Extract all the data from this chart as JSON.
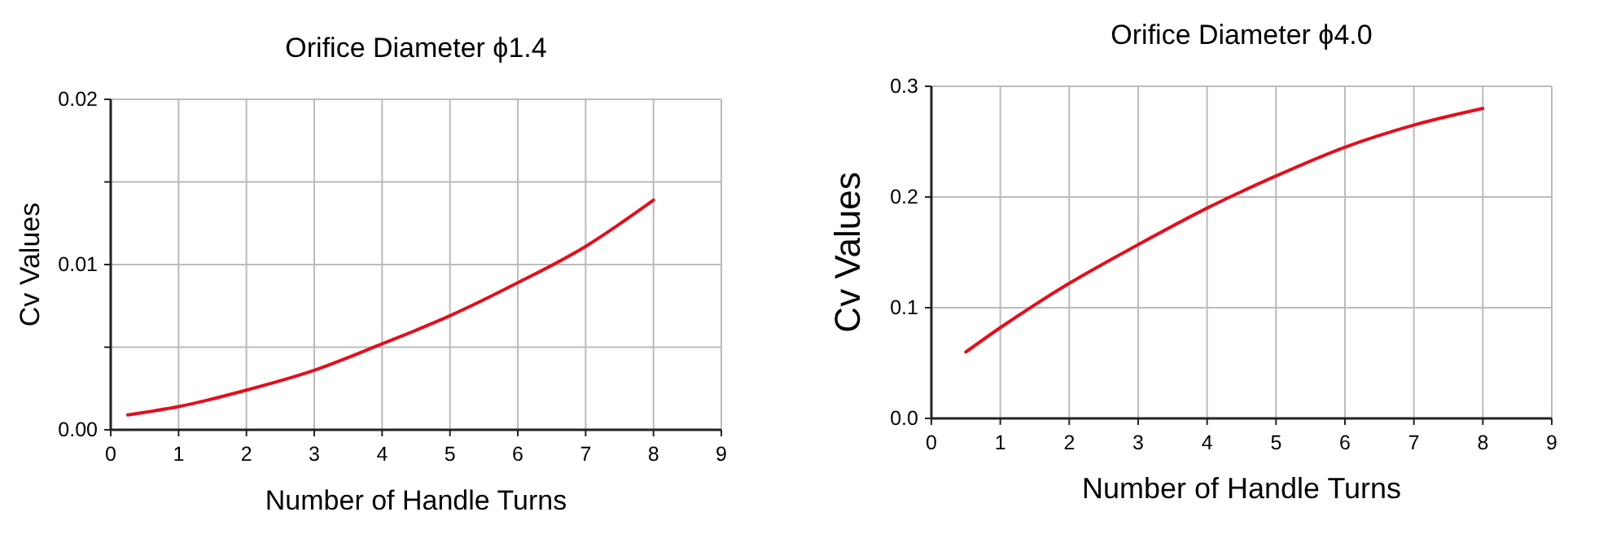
{
  "chart_data": [
    {
      "type": "line",
      "title": "Orifice Diameter ϕ1.4",
      "xlabel": "Number of Handle Turns",
      "ylabel": "Cv Values",
      "x": [
        0.25,
        1,
        2,
        3,
        4,
        5,
        6,
        7,
        8
      ],
      "series": [
        {
          "color": "#e0101e",
          "values": [
            0.0009,
            0.0014,
            0.0024,
            0.0036,
            0.0052,
            0.0069,
            0.0089,
            0.0111,
            0.0139
          ]
        }
      ],
      "xlim": [
        0,
        9
      ],
      "xticks": [
        0,
        1,
        2,
        3,
        4,
        5,
        6,
        7,
        8,
        9
      ],
      "ylim": [
        0,
        0.02
      ],
      "yticks": [
        {
          "value": 0,
          "label": "0.00"
        },
        {
          "value": 0.005,
          "label": null
        },
        {
          "value": 0.01,
          "label": "0.01"
        },
        {
          "value": 0.015,
          "label": null
        },
        {
          "value": 0.02,
          "label": "0.02"
        }
      ],
      "grid": true,
      "marker": "none",
      "line_style": "solid"
    },
    {
      "type": "line",
      "title": "Orifice Diameter ϕ4.0",
      "xlabel": "Number of Handle Turns",
      "ylabel": "Cv Values",
      "x": [
        0.5,
        1,
        2,
        3,
        4,
        5,
        6,
        7,
        8
      ],
      "series": [
        {
          "color": "#e0101e",
          "values": [
            0.06,
            0.082,
            0.122,
            0.157,
            0.19,
            0.219,
            0.245,
            0.265,
            0.28
          ]
        }
      ],
      "xlim": [
        0,
        9
      ],
      "xticks": [
        0,
        1,
        2,
        3,
        4,
        5,
        6,
        7,
        8,
        9
      ],
      "ylim": [
        0,
        0.3
      ],
      "yticks": [
        {
          "value": 0,
          "label": "0.0"
        },
        {
          "value": 0.1,
          "label": "0.1"
        },
        {
          "value": 0.2,
          "label": "0.2"
        },
        {
          "value": 0.3,
          "label": "0.3"
        }
      ],
      "grid": true,
      "marker": "none",
      "line_style": "solid"
    }
  ]
}
